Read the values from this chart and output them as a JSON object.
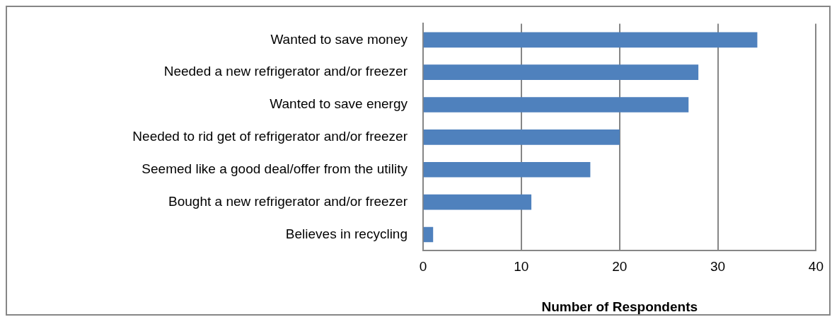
{
  "chart_data": {
    "type": "bar",
    "orientation": "horizontal",
    "categories": [
      "Wanted to save money",
      "Needed a new refrigerator and/or freezer",
      "Wanted to save energy",
      "Needed to rid get of refrigerator and/or freezer",
      "Seemed like a good deal/offer from the utility",
      "Bought a new refrigerator and/or freezer",
      "Believes in recycling"
    ],
    "values": [
      34,
      28,
      27,
      20,
      17,
      11,
      1
    ],
    "color": "#4f81bd",
    "xlabel": "Number of Respondents",
    "xlim": [
      0,
      40
    ],
    "xticks": [
      0,
      10,
      20,
      30,
      40
    ],
    "grid": "x",
    "legend": false
  }
}
